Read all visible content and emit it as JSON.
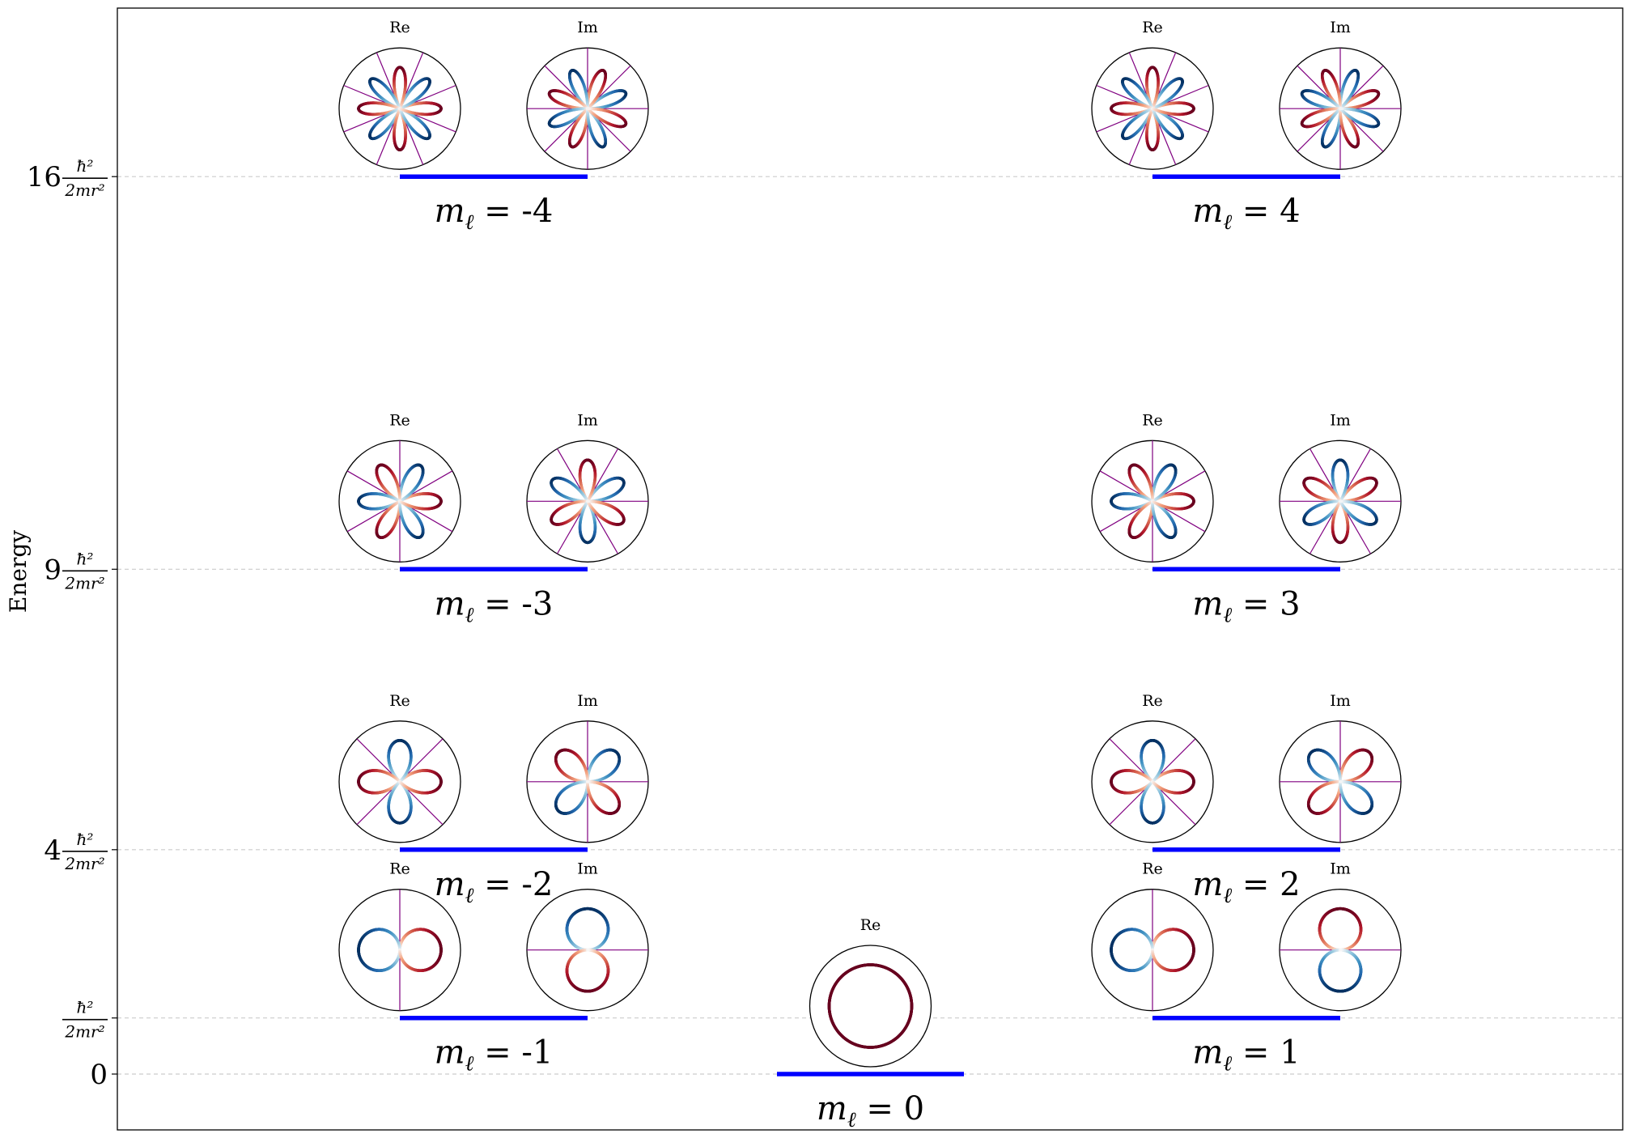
{
  "chart_data": {
    "type": "energy-level diagram",
    "ylabel": "Energy",
    "y_ticks": [
      {
        "value": 0,
        "coef": "0",
        "fraction": false
      },
      {
        "value": 1,
        "coef": "",
        "fraction": true
      },
      {
        "value": 4,
        "coef": "4",
        "fraction": true
      },
      {
        "value": 9,
        "coef": "9",
        "fraction": true
      },
      {
        "value": 16,
        "coef": "16",
        "fraction": true
      }
    ],
    "tick_fraction": {
      "numerator": "ħ²",
      "denominator": "2mr²"
    },
    "grid": "horizontal dashed at ticks",
    "label_symbol": "m",
    "label_subscript": "ℓ",
    "label_equals": "=",
    "panel_titles": {
      "re": "Re",
      "im": "Im"
    },
    "colormap": "RdBu (red positive, blue negative)",
    "colors": {
      "bar": "#0000ff",
      "node_lines": "#800080",
      "grid": "#cccccc",
      "positive": "#67001f",
      "negative": "#053061"
    },
    "levels": [
      {
        "m": -4,
        "energy": 16,
        "value_label": "-4",
        "panels": [
          "Re",
          "Im"
        ]
      },
      {
        "m": 4,
        "energy": 16,
        "value_label": "4",
        "panels": [
          "Re",
          "Im"
        ]
      },
      {
        "m": -3,
        "energy": 9,
        "value_label": "-3",
        "panels": [
          "Re",
          "Im"
        ]
      },
      {
        "m": 3,
        "energy": 9,
        "value_label": "3",
        "panels": [
          "Re",
          "Im"
        ]
      },
      {
        "m": -2,
        "energy": 4,
        "value_label": "-2",
        "panels": [
          "Re",
          "Im"
        ]
      },
      {
        "m": 2,
        "energy": 4,
        "value_label": "2",
        "panels": [
          "Re",
          "Im"
        ]
      },
      {
        "m": -1,
        "energy": 1,
        "value_label": "-1",
        "panels": [
          "Re",
          "Im"
        ]
      },
      {
        "m": 1,
        "energy": 1,
        "value_label": "1",
        "panels": [
          "Re",
          "Im"
        ]
      },
      {
        "m": 0,
        "energy": 0,
        "value_label": "0",
        "panels": [
          "Re"
        ]
      }
    ]
  }
}
